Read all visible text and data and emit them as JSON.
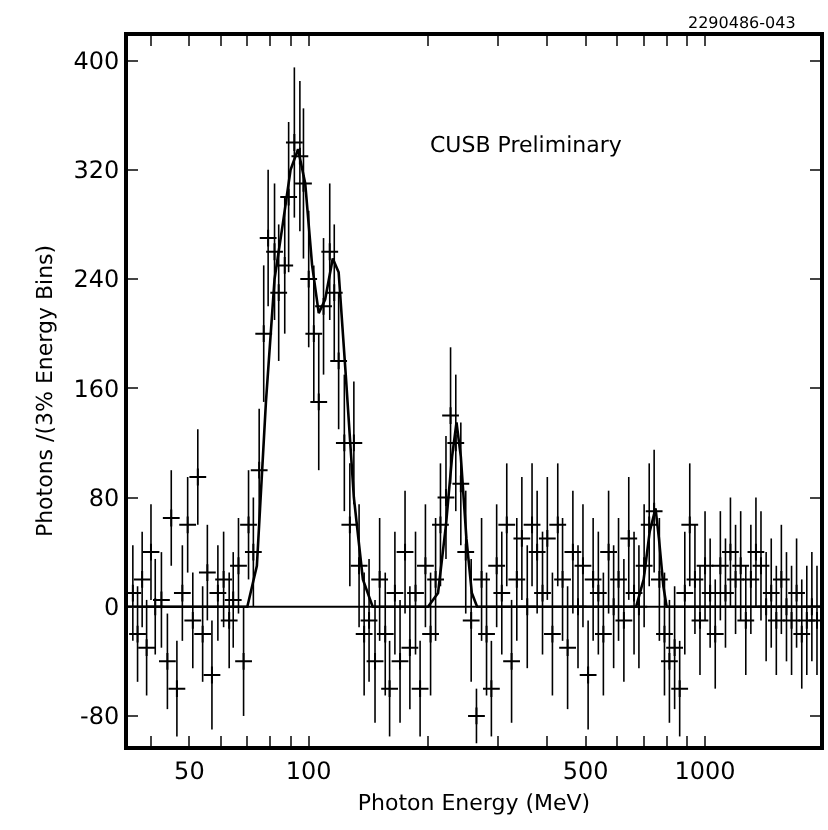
{
  "chart_data": {
    "type": "scatter",
    "xlabel": "Photon Energy (MeV)",
    "ylabel": "Photons /(3% Energy Bins)",
    "annotations": [
      "CUSB Preliminary",
      "2290486-043"
    ],
    "log": "x",
    "xlim": [
      35,
      1950
    ],
    "ylim": [
      -102,
      418
    ],
    "xticks": [
      {
        "value": 40,
        "label": null
      },
      50,
      {
        "value": 60,
        "label": null
      },
      {
        "value": 70,
        "label": null
      },
      {
        "value": 80,
        "label": null
      },
      {
        "value": 90,
        "label": null
      },
      100,
      {
        "value": 200,
        "label": null
      },
      {
        "value": 300,
        "label": null
      },
      {
        "value": 400,
        "label": null
      },
      500,
      {
        "value": 600,
        "label": null
      },
      {
        "value": 700,
        "label": null
      },
      {
        "value": 800,
        "label": null
      },
      {
        "value": 900,
        "label": null
      },
      1000
    ],
    "yticks": [
      -80,
      0,
      80,
      160,
      240,
      320,
      400
    ],
    "grid": false,
    "ref_lines": [
      {
        "axis": "y",
        "value": 0
      }
    ],
    "series": [
      {
        "type": "scatter",
        "color": "#000000",
        "marker": "cross",
        "x": [
          36,
          37,
          38,
          39,
          40,
          41,
          42.5,
          44,
          45,
          46.5,
          48,
          49.5,
          51,
          52.5,
          54,
          55.5,
          57,
          59,
          61,
          63,
          64.5,
          66.5,
          68.5,
          70.5,
          72.5,
          75,
          77,
          79,
          82,
          84,
          87,
          89,
          92,
          95,
          97,
          100,
          103,
          106,
          109,
          113,
          116,
          119,
          123,
          127,
          130,
          134,
          138,
          142,
          147,
          151,
          156,
          160,
          165,
          170,
          175,
          180,
          186,
          191,
          197,
          203,
          209,
          215,
          222,
          228,
          235,
          242,
          249,
          257,
          265,
          273,
          281,
          289,
          298,
          307,
          316,
          325,
          335,
          345,
          356,
          366,
          377,
          389,
          400,
          412,
          425,
          437,
          450,
          464,
          478,
          492,
          507,
          522,
          538,
          554,
          571,
          588,
          605,
          624,
          642,
          662,
          681,
          702,
          723,
          744,
          767,
          790,
          813,
          838,
          863,
          889,
          915,
          943,
          971,
          1000,
          1030,
          1061,
          1093,
          1126,
          1159,
          1194,
          1230,
          1267,
          1305,
          1344,
          1384,
          1426,
          1469,
          1513,
          1558,
          1605,
          1653,
          1702,
          1754,
          1806,
          1860,
          1916
        ],
        "values": [
          10,
          -20,
          20,
          -30,
          40,
          0,
          5,
          -40,
          65,
          -60,
          10,
          60,
          -10,
          95,
          -20,
          25,
          -50,
          10,
          20,
          -10,
          5,
          30,
          -40,
          60,
          40,
          100,
          200,
          270,
          260,
          230,
          250,
          300,
          340,
          330,
          310,
          240,
          200,
          150,
          220,
          260,
          230,
          180,
          120,
          60,
          120,
          30,
          -20,
          -10,
          -40,
          20,
          -20,
          -60,
          10,
          -40,
          40,
          -30,
          10,
          -60,
          30,
          -20,
          20,
          60,
          80,
          140,
          120,
          90,
          40,
          -10,
          -80,
          20,
          -20,
          -60,
          30,
          10,
          60,
          -40,
          20,
          50,
          0,
          60,
          40,
          10,
          50,
          -20,
          60,
          20,
          -30,
          40,
          0,
          30,
          -50,
          20,
          10,
          -20,
          40,
          0,
          20,
          -10,
          50,
          10,
          0,
          30,
          60,
          70,
          20,
          -20,
          -40,
          -30,
          -60,
          10,
          60,
          20,
          -10,
          30,
          10,
          -20,
          30,
          10,
          40,
          20,
          30,
          -10,
          20,
          40,
          30,
          0,
          10,
          -10,
          20,
          0,
          -10,
          10,
          -20,
          -10,
          0,
          -10
        ],
        "errors": [
          35,
          35,
          35,
          35,
          35,
          35,
          35,
          35,
          35,
          35,
          35,
          35,
          35,
          35,
          35,
          35,
          40,
          35,
          35,
          35,
          35,
          35,
          40,
          40,
          40,
          45,
          50,
          50,
          50,
          50,
          50,
          55,
          55,
          55,
          55,
          50,
          50,
          50,
          50,
          50,
          50,
          50,
          50,
          45,
          45,
          45,
          45,
          45,
          45,
          45,
          45,
          35,
          45,
          45,
          45,
          45,
          45,
          35,
          45,
          45,
          45,
          45,
          45,
          50,
          50,
          45,
          45,
          45,
          20,
          45,
          45,
          35,
          45,
          45,
          45,
          45,
          45,
          45,
          45,
          45,
          45,
          45,
          45,
          45,
          45,
          45,
          45,
          45,
          45,
          45,
          40,
          45,
          45,
          45,
          45,
          45,
          45,
          45,
          45,
          45,
          45,
          45,
          45,
          45,
          45,
          45,
          45,
          45,
          35,
          45,
          45,
          40,
          40,
          40,
          40,
          40,
          40,
          40,
          40,
          40,
          40,
          40,
          40,
          40,
          40,
          40,
          40,
          40,
          40,
          40,
          40,
          40,
          40,
          40,
          40,
          40
        ]
      },
      {
        "type": "line",
        "color": "#000000",
        "x": [
          35,
          70,
          74,
          78,
          82,
          86,
          90,
          94,
          98,
          102,
          106,
          110,
          115,
          119,
          124,
          130,
          137,
          145,
          200,
          212,
          222,
          230,
          236,
          242,
          250,
          258,
          266,
          670,
          700,
          725,
          750,
          765,
          785,
          800,
          1950
        ],
        "values": [
          0,
          0,
          30,
          150,
          240,
          280,
          320,
          335,
          310,
          250,
          215,
          225,
          255,
          245,
          170,
          80,
          20,
          0,
          0,
          10,
          60,
          110,
          135,
          110,
          50,
          10,
          0,
          0,
          20,
          55,
          72,
          50,
          15,
          0,
          0
        ]
      }
    ]
  }
}
